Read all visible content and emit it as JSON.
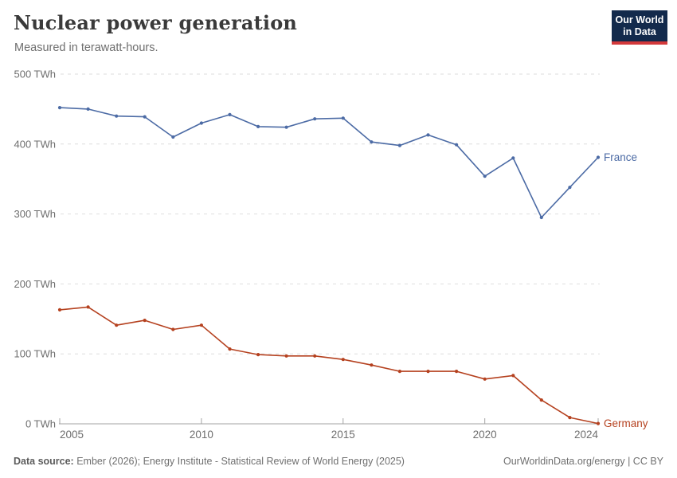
{
  "header": {
    "title": "Nuclear power generation",
    "subtitle": "Measured in terawatt-hours.",
    "logo_line1": "Our World",
    "logo_line2": "in Data"
  },
  "chart_data": {
    "type": "line",
    "x": [
      2005,
      2006,
      2007,
      2008,
      2009,
      2010,
      2011,
      2012,
      2013,
      2014,
      2015,
      2016,
      2017,
      2018,
      2019,
      2020,
      2021,
      2022,
      2023,
      2024
    ],
    "series": [
      {
        "name": "France",
        "color": "#4C6BA5",
        "values": [
          452,
          450,
          440,
          439,
          410,
          430,
          442,
          425,
          424,
          436,
          437,
          403,
          398,
          413,
          399,
          354,
          380,
          295,
          338,
          381
        ]
      },
      {
        "name": "Germany",
        "color": "#B5411F",
        "values": [
          163,
          167,
          141,
          148,
          135,
          141,
          107,
          99,
          97,
          97,
          92,
          84,
          75,
          75,
          75,
          64,
          69,
          34,
          9,
          0.4
        ]
      }
    ],
    "title": "Nuclear power generation",
    "subtitle": "Measured in terawatt-hours.",
    "xlabel": "",
    "ylabel": "TWh",
    "xlim": [
      2005,
      2024
    ],
    "ylim": [
      0,
      500
    ],
    "yticks": [
      0,
      100,
      200,
      300,
      400,
      500
    ],
    "ytick_suffix": " TWh",
    "xticks": [
      2005,
      2010,
      2015,
      2020,
      2024
    ],
    "grid": "horizontal-dashed",
    "legend_position": "line-end-labels"
  },
  "footer": {
    "source_label": "Data source:",
    "source_text": " Ember (2026); Energy Institute - Statistical Review of World Energy (2025)",
    "rights": "OurWorldinData.org/energy | CC BY"
  },
  "colors": {
    "france": "#4C6BA5",
    "germany": "#B5411F",
    "gridline": "#dedede",
    "axis": "#a3a3a3",
    "axis_text": "#6e6e6e",
    "logo_bg": "#132A4C",
    "logo_accent": "#D3393B"
  }
}
